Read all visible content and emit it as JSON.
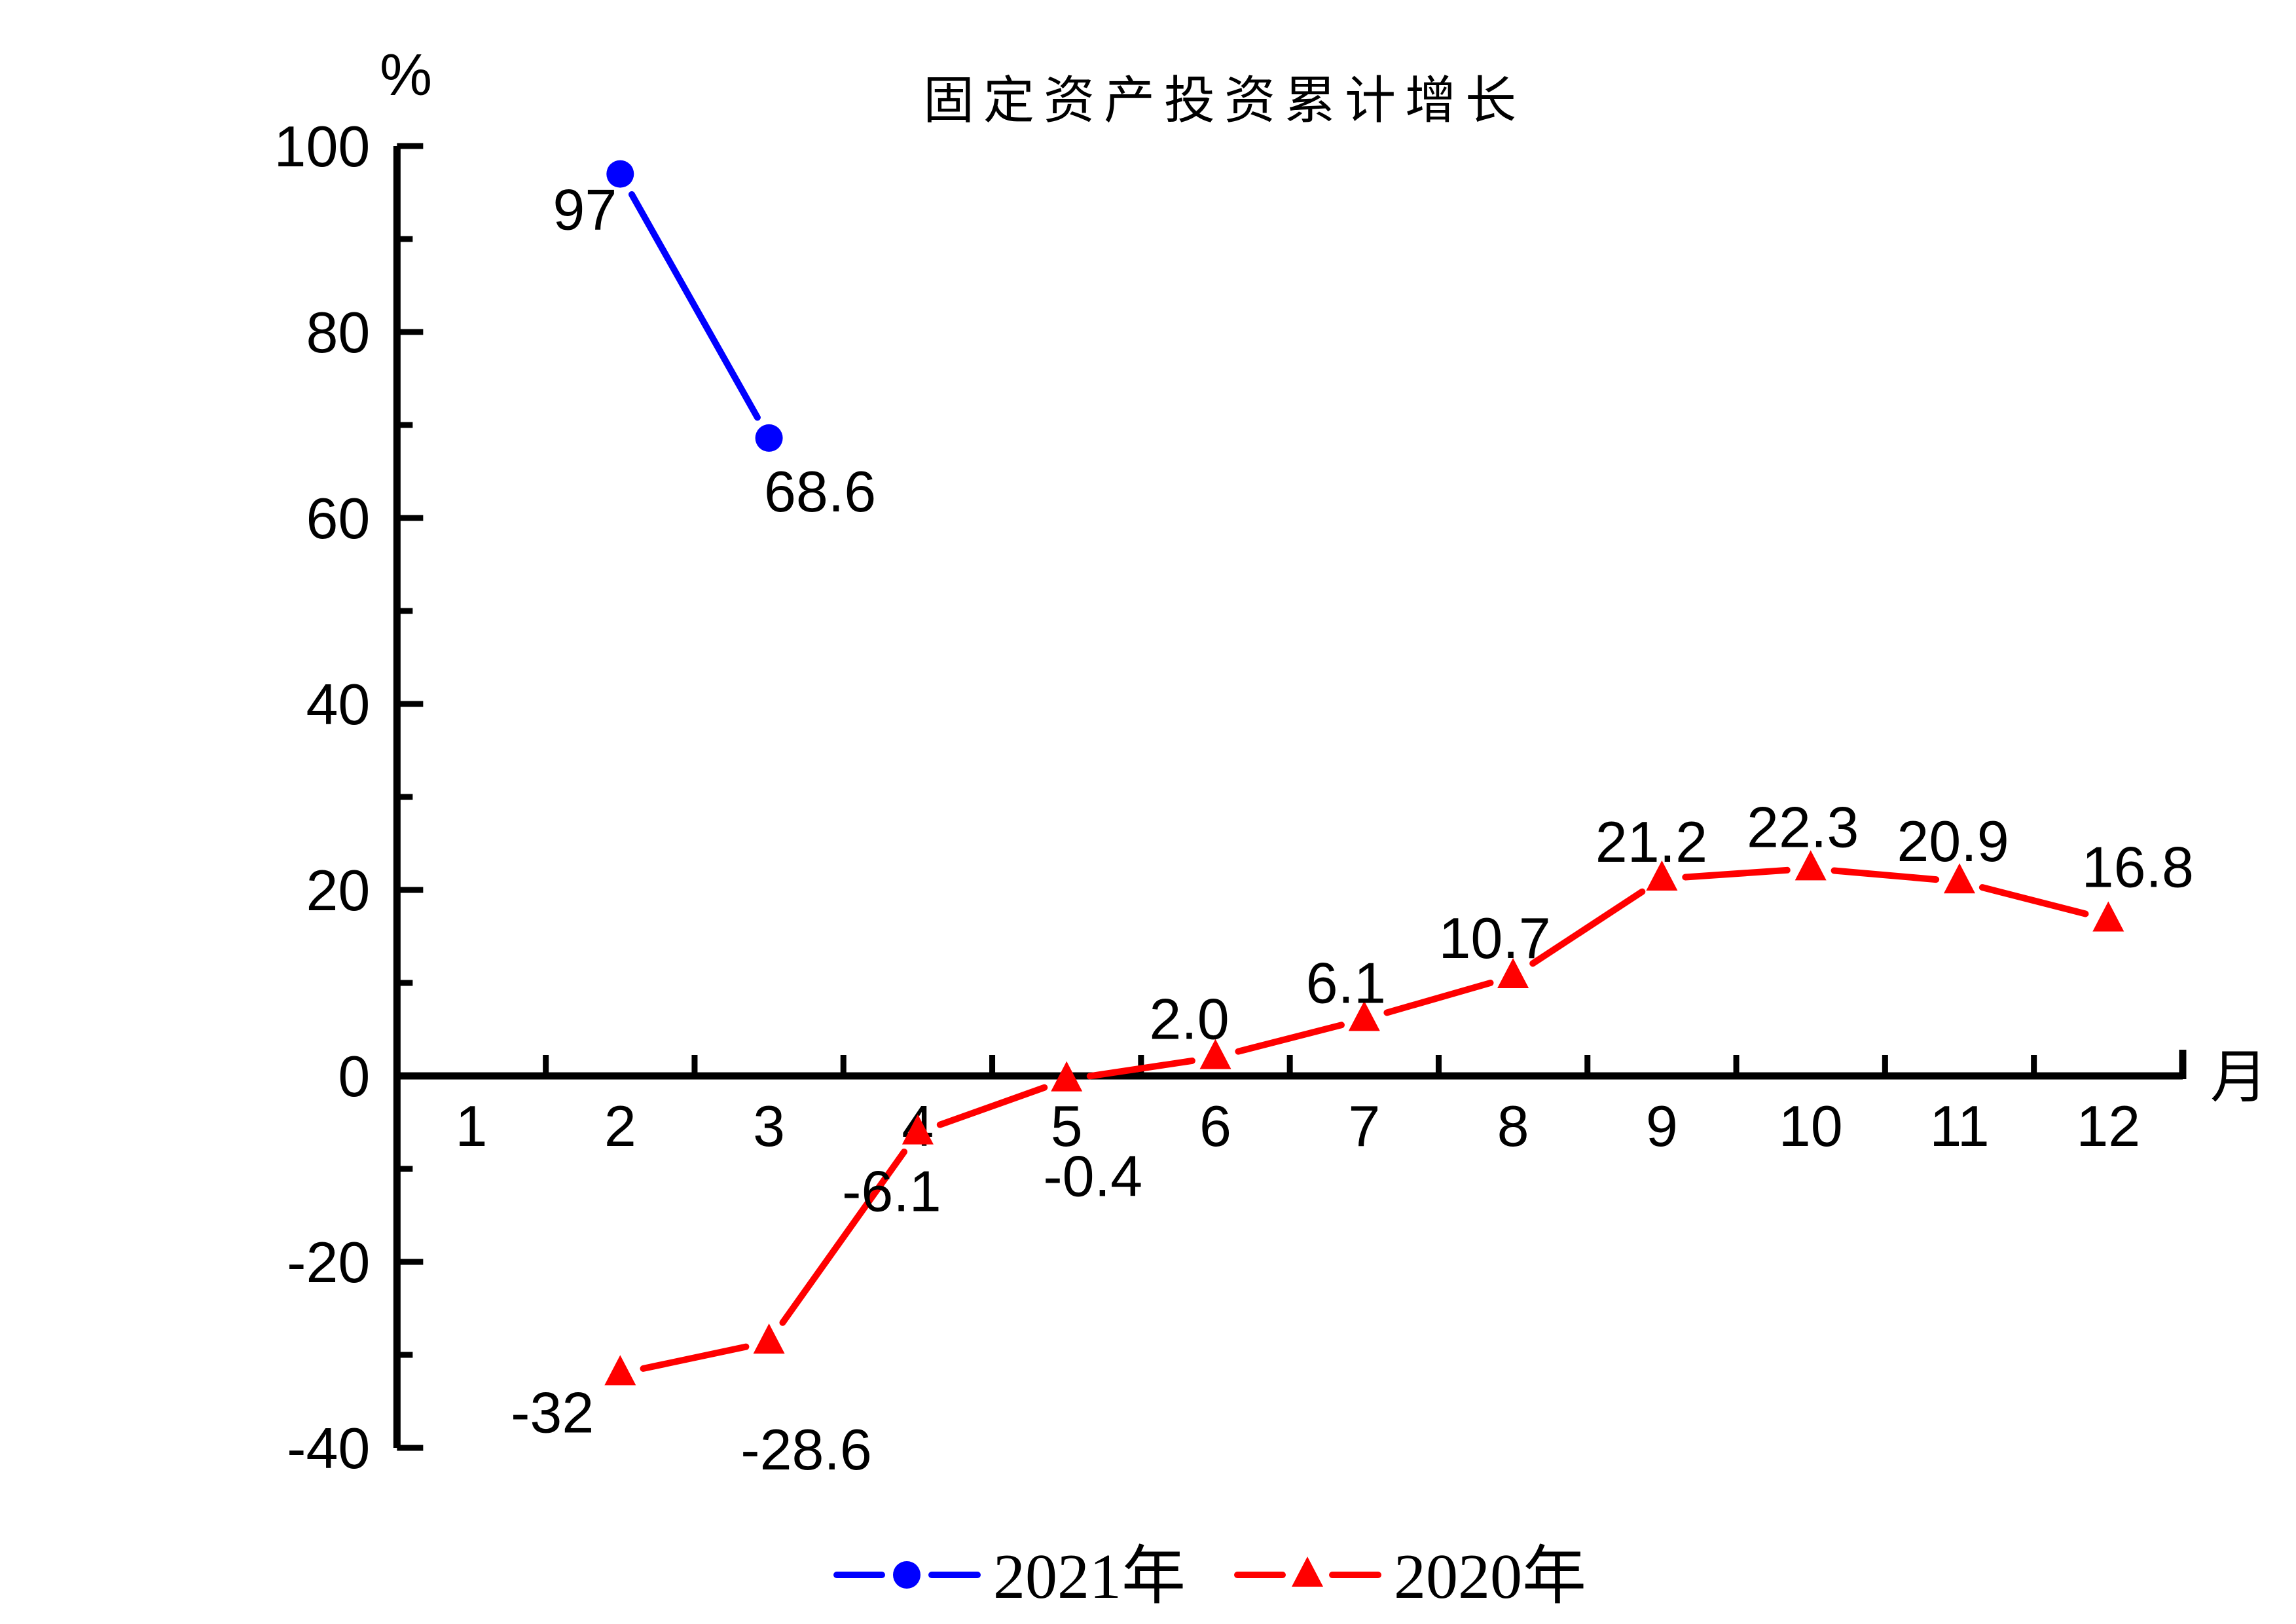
{
  "page": {
    "background_color": "#ffffff"
  },
  "chart_data": {
    "type": "line",
    "title": "固定资产投资累计增长",
    "y_axis_unit_label": "%",
    "x_axis_unit_label": "月",
    "x_ticks": [
      1,
      2,
      3,
      4,
      5,
      6,
      7,
      8,
      9,
      10,
      11,
      12
    ],
    "xlim": [
      0.5,
      12.5
    ],
    "ylim": [
      -40,
      100
    ],
    "y_major_ticks": [
      -40,
      -20,
      0,
      20,
      40,
      60,
      80,
      100
    ],
    "y_minor_ticks": [
      -30,
      -10,
      10,
      30,
      50,
      70,
      90
    ],
    "grid": false,
    "legend_position": "bottom-center",
    "axis_color": "#000000",
    "series": [
      {
        "name": "2021年",
        "color": "#0000ff",
        "marker": "circle",
        "x": [
          2,
          3
        ],
        "values": [
          97,
          68.6
        ],
        "labels": [
          "97",
          "68.6"
        ],
        "label_offsets": [
          {
            "dx": -5,
            "dy": 85,
            "anchor": "end"
          },
          {
            "dx": 78,
            "dy": 112,
            "anchor": "middle"
          }
        ]
      },
      {
        "name": "2020年",
        "color": "#ff0000",
        "marker": "triangle",
        "x": [
          2,
          3,
          4,
          5,
          6,
          7,
          8,
          9,
          10,
          11,
          12
        ],
        "values": [
          -32,
          -28.6,
          -6.1,
          -0.4,
          2.0,
          6.1,
          10.7,
          21.2,
          22.3,
          20.9,
          16.8
        ],
        "labels": [
          "-32",
          "-28.6",
          "-6.1",
          "-0.4",
          "2.0",
          "6.1",
          "10.7",
          "21.2",
          "22.3",
          "20.9",
          "16.8"
        ],
        "label_offsets": [
          {
            "dx": -40,
            "dy": 90,
            "anchor": "end"
          },
          {
            "dx": 57,
            "dy": 195,
            "anchor": "middle"
          },
          {
            "dx": -40,
            "dy": 120,
            "anchor": "middle"
          },
          {
            "dx": 40,
            "dy": 178,
            "anchor": "middle"
          },
          {
            "dx": -40,
            "dy": -28,
            "anchor": "middle"
          },
          {
            "dx": -28,
            "dy": -25,
            "anchor": "middle"
          },
          {
            "dx": -28,
            "dy": -28,
            "anchor": "middle"
          },
          {
            "dx": -16,
            "dy": -26,
            "anchor": "middle"
          },
          {
            "dx": -12,
            "dy": -33,
            "anchor": "middle"
          },
          {
            "dx": -10,
            "dy": -31,
            "anchor": "middle"
          },
          {
            "dx": 45,
            "dy": -50,
            "anchor": "middle"
          }
        ]
      }
    ]
  }
}
